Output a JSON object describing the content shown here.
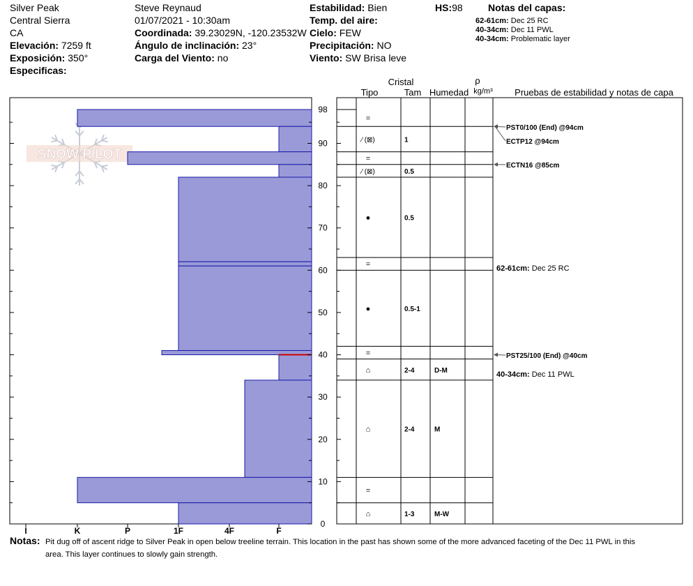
{
  "header": {
    "location": "Silver Peak",
    "range": "Central Sierra",
    "state": "CA",
    "elevation_label": "Elevación:",
    "elevation_value": "7259 ft",
    "exposure_label": "Exposición:",
    "exposure_value": "350°",
    "specifics_label": "Especificas:",
    "observer": "Steve Reynaud",
    "datetime": "01/07/2021 - 10:30am",
    "coord_label": "Coordinada:",
    "coord_value": "39.23029N, -120.23532W",
    "angle_label": "Ángulo de inclinación:",
    "angle_value": "23°",
    "wind_load_label": "Carga del Viento:",
    "wind_load_value": "no",
    "stability_label": "Estabilidad:",
    "stability_value": "Bien",
    "air_temp_label": "Temp. del aire:",
    "sky_label": "Cielo:",
    "sky_value": "FEW",
    "precip_label": "Precipitación:",
    "precip_value": "NO",
    "wind_label": "Viento:",
    "wind_value": "SW Brisa leve",
    "hs_label": "HS:",
    "hs_value": "98",
    "layer_notes_title": "Notas del capas:",
    "layer_notes": [
      {
        "depth": "62-61cm:",
        "text": "Dec 25 RC"
      },
      {
        "depth": "40-34cm:",
        "text": "Dec 11 PWL"
      },
      {
        "depth": "40-34cm:",
        "text": "Problematic layer"
      }
    ]
  },
  "logo_text": "SNOW PILOT",
  "table_headers": {
    "cristal": "Cristal",
    "tipo": "Tipo",
    "tam": "Tam",
    "humedad": "Humedad",
    "rho": "ρ",
    "density_unit": "kg/m³",
    "tests": "Pruebas de estabilidad y notas de capa"
  },
  "colors": {
    "hardness_fill": "#9a9ad8",
    "hardness_stroke": "#1a1aa8",
    "pwl_line": "#cc0000"
  },
  "chart_data": {
    "type": "hardness_profile",
    "y_unit": "cm",
    "ylim": [
      0,
      98
    ],
    "y_ticks": [
      0,
      10,
      20,
      30,
      40,
      50,
      60,
      70,
      80,
      90,
      98
    ],
    "x_labels": [
      "I",
      "K",
      "P",
      "1F",
      "4F",
      "F"
    ],
    "layers": [
      {
        "top": 98,
        "bottom": 94,
        "hardness": "K"
      },
      {
        "top": 94,
        "bottom": 88,
        "hardness": "F"
      },
      {
        "top": 88,
        "bottom": 85,
        "hardness": "P+"
      },
      {
        "top": 85,
        "bottom": 82,
        "hardness": "F"
      },
      {
        "top": 82,
        "bottom": 62,
        "hardness": "1F"
      },
      {
        "top": 62,
        "bottom": 61,
        "hardness": "1F"
      },
      {
        "top": 61,
        "bottom": 41,
        "hardness": "1F"
      },
      {
        "top": 41,
        "bottom": 40,
        "hardness": "1F-"
      },
      {
        "top": 40,
        "bottom": 34,
        "hardness": "F"
      },
      {
        "top": 34,
        "bottom": 11,
        "hardness": "4F-"
      },
      {
        "top": 11,
        "bottom": 5,
        "hardness": "K"
      },
      {
        "top": 5,
        "bottom": 0,
        "hardness": "1F"
      }
    ],
    "grain_rows": [
      {
        "top": 98,
        "bottom": 94,
        "tipo": "=",
        "tam": "",
        "hum": ""
      },
      {
        "top": 94,
        "bottom": 88,
        "tipo": "⁄ (⊠)",
        "tam": "1",
        "hum": ""
      },
      {
        "top": 88,
        "bottom": 85,
        "tipo": "=",
        "tam": "",
        "hum": ""
      },
      {
        "top": 85,
        "bottom": 82,
        "tipo": "⁄ (⊠)",
        "tam": "0.5",
        "hum": ""
      },
      {
        "top": 82,
        "bottom": 63,
        "tipo": "●",
        "tam": "0.5",
        "hum": ""
      },
      {
        "top": 63,
        "bottom": 60,
        "tipo": "=",
        "tam": "",
        "hum": ""
      },
      {
        "top": 60,
        "bottom": 42,
        "tipo": "●",
        "tam": "0.5-1",
        "hum": ""
      },
      {
        "top": 42,
        "bottom": 39,
        "tipo": "=",
        "tam": "",
        "hum": ""
      },
      {
        "top": 39,
        "bottom": 34,
        "tipo": "⌂",
        "tam": "2-4",
        "hum": "D-M"
      },
      {
        "top": 34,
        "bottom": 11,
        "tipo": "⌂",
        "tam": "2-4",
        "hum": "M"
      },
      {
        "top": 11,
        "bottom": 5,
        "tipo": "=",
        "tam": "",
        "hum": ""
      },
      {
        "top": 5,
        "bottom": 0,
        "tipo": "⌂",
        "tam": "1-3",
        "hum": "M-W"
      }
    ],
    "tests": [
      {
        "label": "PST0/100 (End) @94cm",
        "depth": 94
      },
      {
        "label": "ECTP12 @94cm",
        "depth": 94
      },
      {
        "label": "ECTN16 @85cm",
        "depth": 85
      },
      {
        "label": "PST25/100 (End) @40cm",
        "depth": 40
      }
    ],
    "layer_notes": [
      {
        "depth": "62-61cm:",
        "text": "Dec 25 RC"
      },
      {
        "depth": "40-34cm:",
        "text": "Dec 11 PWL"
      }
    ]
  },
  "notes_label": "Notas:",
  "notes_line1": "Pit dug off of ascent ridge to Silver Peak in open below treeline terrain.  This location in the past has shown some of the  more advanced faceting of the Dec 11 PWL in this",
  "notes_line2": "area.  This layer continues to slowly gain strength."
}
